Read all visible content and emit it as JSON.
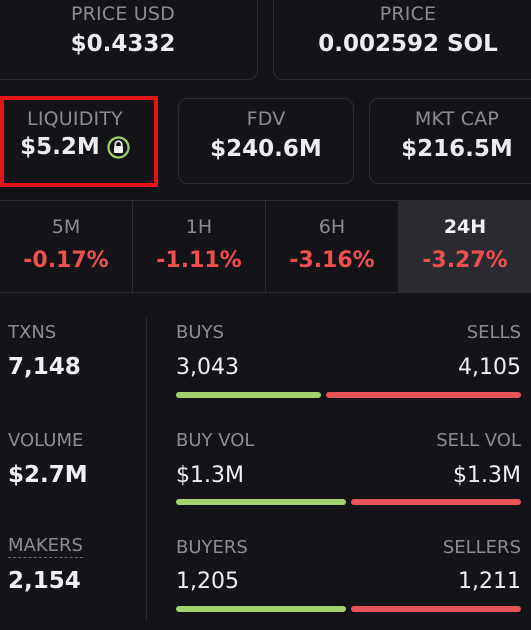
{
  "top_cards": {
    "price_usd": {
      "label": "PRICE USD",
      "value": "$0.4332"
    },
    "price_sol": {
      "label": "PRICE",
      "value": "0.002592 SOL"
    }
  },
  "metric_cards": {
    "liquidity": {
      "label": "LIQUIDITY",
      "value": "$5.2M",
      "icon": "lock-icon"
    },
    "fdv": {
      "label": "FDV",
      "value": "$240.6M"
    },
    "mkt_cap": {
      "label": "MKT CAP",
      "value": "$216.5M"
    }
  },
  "timeframes": [
    {
      "label": "5M",
      "value": "-0.17%"
    },
    {
      "label": "1H",
      "value": "-1.11%"
    },
    {
      "label": "6H",
      "value": "-3.16%"
    },
    {
      "label": "24H",
      "value": "-3.27%",
      "active": true
    }
  ],
  "stats": {
    "txns": {
      "label": "TXNS",
      "value": "7,148",
      "left_label": "BUYS",
      "left_value": "3,043",
      "right_label": "SELLS",
      "right_value": "4,105",
      "buy_fraction": 0.426
    },
    "volume": {
      "label": "VOLUME",
      "value": "$2.7M",
      "left_label": "BUY VOL",
      "left_value": "$1.3M",
      "right_label": "SELL VOL",
      "right_value": "$1.3M",
      "buy_fraction": 0.5
    },
    "makers": {
      "label": "MAKERS",
      "value": "2,154",
      "left_label": "BUYERS",
      "left_value": "1,205",
      "right_label": "SELLERS",
      "right_value": "1,211",
      "buy_fraction": 0.499
    }
  },
  "colors": {
    "negative": "#ef4f4f",
    "buy_bar": "#a4d36d",
    "sell_bar": "#e8545a",
    "highlight": "#e5141b",
    "lock_ring": "#a4d36d"
  }
}
